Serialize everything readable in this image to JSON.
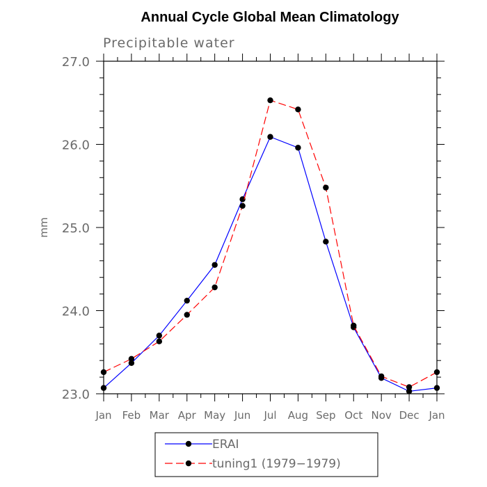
{
  "chart_data": {
    "type": "line",
    "title": "Annual Cycle Global Mean Climatology",
    "subtitle": "Precipitable water",
    "xlabel": "",
    "ylabel": "mm",
    "categories": [
      "Jan",
      "Feb",
      "Mar",
      "Apr",
      "May",
      "Jun",
      "Jul",
      "Aug",
      "Sep",
      "Oct",
      "Nov",
      "Dec",
      "Jan"
    ],
    "ylim": [
      23.0,
      27.0
    ],
    "yticks": [
      "23.0",
      "24.0",
      "25.0",
      "26.0",
      "27.0"
    ],
    "series": [
      {
        "name": "ERAI",
        "color": "#0000ff",
        "dash": "solid",
        "marker": "circle",
        "values": [
          23.07,
          23.37,
          23.7,
          24.12,
          24.55,
          25.34,
          26.09,
          25.96,
          24.83,
          23.8,
          23.19,
          23.03,
          23.07
        ]
      },
      {
        "name": "tuning1 (1979−1979)",
        "color": "#ff0000",
        "dash": "dashed",
        "marker": "circle",
        "values": [
          23.26,
          23.42,
          23.63,
          23.95,
          24.28,
          25.26,
          26.53,
          26.42,
          25.48,
          23.82,
          23.21,
          23.08,
          23.26
        ]
      }
    ],
    "legend": {
      "placement": "bottom",
      "entries": [
        "ERAI",
        "tuning1 (1979−1979)"
      ]
    },
    "grid": false
  }
}
